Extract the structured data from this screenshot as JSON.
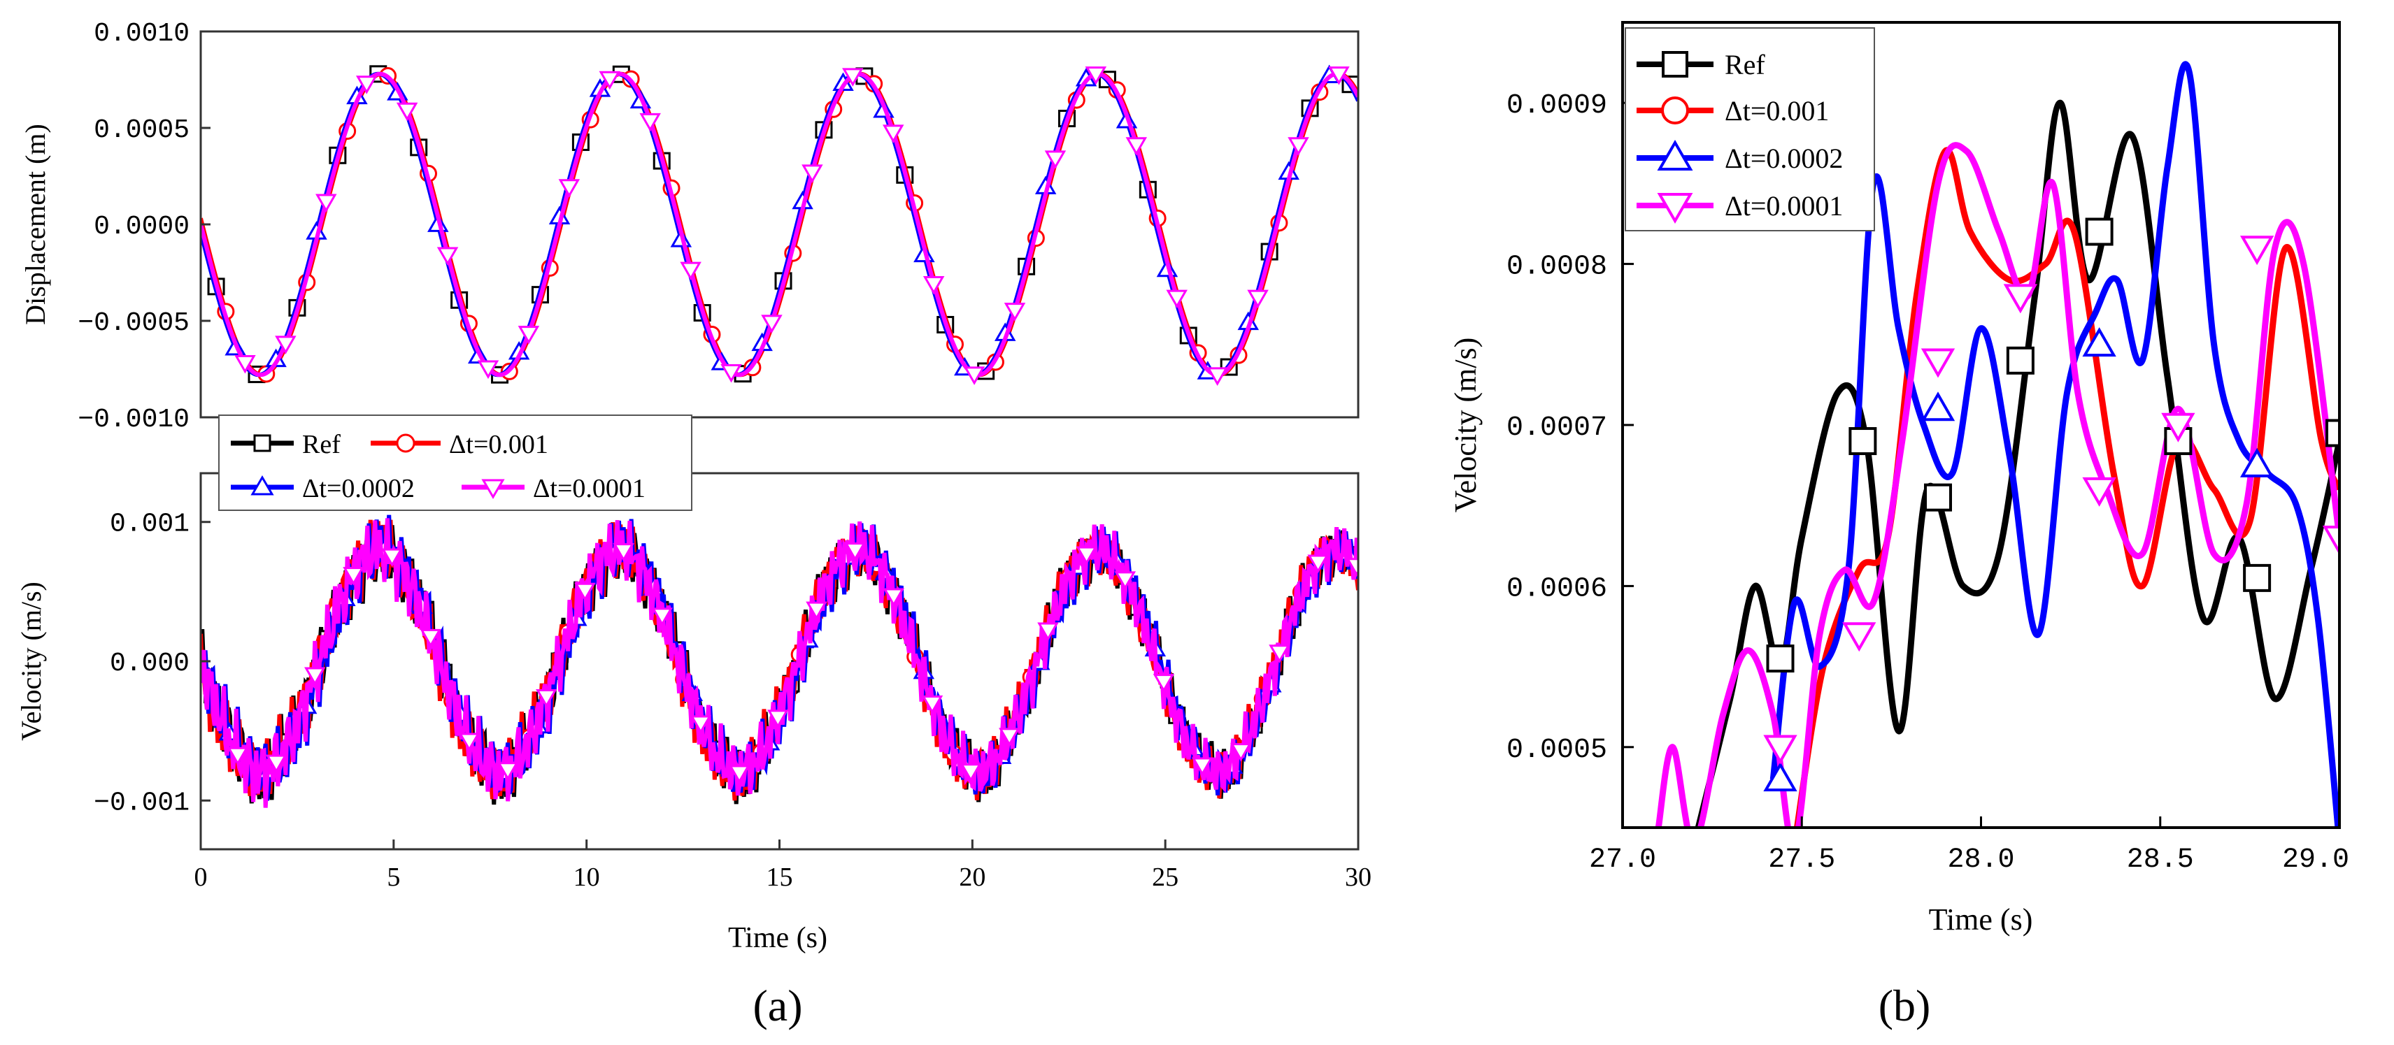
{
  "colors": {
    "ref": "#000000",
    "dt_001": "#ff0000",
    "dt_0002": "#0000ff",
    "dt_0001": "#ff00ff"
  },
  "panel_labels": {
    "a": "(a)",
    "b": "(b)"
  },
  "legend": {
    "ref": "Ref",
    "dt_001": "Δt=0.001",
    "dt_0002": "Δt=0.0002",
    "dt_0001": "Δt=0.0001"
  },
  "chart_data": [
    {
      "panel": "a-top",
      "type": "line",
      "ylabel": "Displacement (m)",
      "xlim": [
        0,
        30
      ],
      "ylim": [
        -0.001,
        0.001
      ],
      "y_ticks": [
        "0.0010",
        "0.0005",
        "0.0000",
        "−0.0005",
        "−0.0010"
      ],
      "y_tick_values": [
        0.001,
        0.0005,
        0,
        -0.0005,
        -0.001
      ],
      "model": {
        "amplitude": 0.00078,
        "period": 6.2,
        "phase_t0": 1.55
      },
      "series": [
        {
          "name": "Ref",
          "marker": "square",
          "color_key": "ref"
        },
        {
          "name": "Δt=0.001",
          "marker": "circle",
          "color_key": "dt_001"
        },
        {
          "name": "Δt=0.0002",
          "marker": "triangle-up",
          "color_key": "dt_0002"
        },
        {
          "name": "Δt=0.0001",
          "marker": "triangle-down",
          "color_key": "dt_0001"
        }
      ]
    },
    {
      "panel": "a-bottom",
      "type": "line",
      "xlabel": "Time (s)",
      "ylabel": "Velocity (m/s)",
      "xlim": [
        0,
        30
      ],
      "ylim": [
        -0.00135,
        0.00135
      ],
      "x_ticks": [
        "0",
        "5",
        "10",
        "15",
        "20",
        "25",
        "30"
      ],
      "x_tick_values": [
        0,
        5,
        10,
        15,
        20,
        25,
        30
      ],
      "y_ticks": [
        "0.001",
        "0.000",
        "−0.001"
      ],
      "y_tick_values": [
        0.001,
        0,
        -0.001
      ],
      "model": {
        "amplitude": 0.0008,
        "period": 6.2,
        "phase_t0": 3.1,
        "noise": 0.00018
      },
      "series": [
        {
          "name": "Ref",
          "marker": "square",
          "color_key": "ref"
        },
        {
          "name": "Δt=0.001",
          "marker": "circle",
          "color_key": "dt_001"
        },
        {
          "name": "Δt=0.0002",
          "marker": "triangle-up",
          "color_key": "dt_0002"
        },
        {
          "name": "Δt=0.0001",
          "marker": "triangle-down",
          "color_key": "dt_0001"
        }
      ]
    },
    {
      "panel": "b",
      "type": "line",
      "xlabel": "Time (s)",
      "ylabel": "Velocity (m/s)",
      "xlim": [
        27.0,
        29.0
      ],
      "ylim": [
        0.00045,
        0.00095
      ],
      "x_ticks": [
        "27.0",
        "27.5",
        "28.0",
        "28.5",
        "29.0"
      ],
      "x_tick_values": [
        27.0,
        27.5,
        28.0,
        28.5,
        29.0
      ],
      "y_ticks": [
        "0.0009",
        "0.0008",
        "0.0007",
        "0.0006",
        "0.0005"
      ],
      "y_tick_values": [
        0.0009,
        0.0008,
        0.0007,
        0.0006,
        0.0005
      ],
      "series": [
        {
          "name": "Ref",
          "color_key": "ref",
          "marker": "square",
          "x": [
            27.2,
            27.3,
            27.37,
            27.44,
            27.5,
            27.6,
            27.68,
            27.77,
            27.85,
            27.95,
            28.05,
            28.15,
            28.22,
            28.3,
            28.42,
            28.52,
            28.62,
            28.72,
            28.82,
            28.92,
            29.0
          ],
          "y": [
            0.00044,
            0.00053,
            0.0006,
            0.00055,
            0.00063,
            0.00072,
            0.00069,
            0.00051,
            0.00066,
            0.0006,
            0.00062,
            0.00078,
            0.0009,
            0.00079,
            0.00088,
            0.00073,
            0.00058,
            0.00063,
            0.00053,
            0.00061,
            0.00069
          ],
          "marker_x": [
            27.44,
            27.67,
            27.88,
            28.11,
            28.33,
            28.55,
            28.77,
            29.0
          ],
          "marker_y": [
            0.000555,
            0.00069,
            0.000655,
            0.00074,
            0.00082,
            0.00069,
            0.000605,
            0.000695
          ]
        },
        {
          "name": "Δt=0.001",
          "color_key": "dt_001",
          "marker": "circle",
          "x": [
            27.48,
            27.56,
            27.66,
            27.74,
            27.82,
            27.9,
            27.97,
            28.08,
            28.18,
            28.26,
            28.37,
            28.45,
            28.55,
            28.65,
            28.75,
            28.85,
            28.95,
            29.0
          ],
          "y": [
            0.00044,
            0.00055,
            0.00061,
            0.00063,
            0.00078,
            0.00087,
            0.00082,
            0.00079,
            0.0008,
            0.00082,
            0.00067,
            0.0006,
            0.00069,
            0.00066,
            0.00064,
            0.00081,
            0.00069,
            0.00066
          ],
          "marker_x": [],
          "marker_y": []
        },
        {
          "name": "Δt=0.0002",
          "color_key": "dt_0002",
          "marker": "triangle-up",
          "x": [
            27.42,
            27.48,
            27.55,
            27.63,
            27.7,
            27.77,
            27.84,
            27.92,
            28.0,
            28.08,
            28.16,
            28.24,
            28.32,
            28.38,
            28.45,
            28.52,
            28.58,
            28.65,
            28.72,
            28.8,
            28.88,
            28.94,
            29.0
          ],
          "y": [
            0.00048,
            0.00059,
            0.00055,
            0.00061,
            0.00085,
            0.00076,
            0.0007,
            0.00067,
            0.00076,
            0.00068,
            0.00057,
            0.00072,
            0.00077,
            0.00079,
            0.00074,
            0.00086,
            0.00092,
            0.00075,
            0.00069,
            0.00067,
            0.00065,
            0.00058,
            0.00044
          ],
          "marker_x": [
            27.44,
            27.88,
            28.33,
            28.77
          ],
          "marker_y": [
            0.00048,
            0.00071,
            0.00075,
            0.000675
          ]
        },
        {
          "name": "Δt=0.0001",
          "color_key": "dt_0001",
          "marker": "triangle-down",
          "x": [
            27.1,
            27.14,
            27.2,
            27.28,
            27.35,
            27.42,
            27.48,
            27.55,
            27.62,
            27.7,
            27.78,
            27.88,
            27.96,
            28.05,
            28.13,
            28.2,
            28.27,
            28.35,
            28.45,
            28.55,
            28.65,
            28.74,
            28.82,
            28.9,
            29.0
          ],
          "y": [
            0.00045,
            0.0005,
            0.00044,
            0.00052,
            0.00056,
            0.00052,
            0.00044,
            0.00057,
            0.00061,
            0.00059,
            0.00069,
            0.00085,
            0.00087,
            0.00082,
            0.00078,
            0.00085,
            0.00072,
            0.00066,
            0.00062,
            0.00071,
            0.00062,
            0.00065,
            0.00081,
            0.0008,
            0.00063
          ],
          "marker_x": [
            27.44,
            27.66,
            27.88,
            28.11,
            28.33,
            28.55,
            28.77,
            29.0
          ],
          "marker_y": [
            0.0005,
            0.00057,
            0.00074,
            0.00078,
            0.00066,
            0.0007,
            0.00081,
            0.00063
          ]
        }
      ]
    }
  ]
}
